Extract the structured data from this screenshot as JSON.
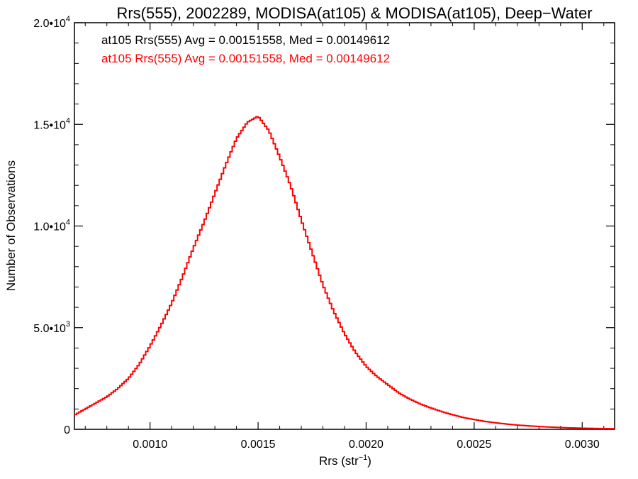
{
  "chart_data": {
    "type": "line",
    "title": "Rrs(555), 2002289, MODISA(at105) & MODISA(at105), Deep−Water",
    "xlabel": "Rrs (str",
    "xlabel_sup": "−1",
    "xlabel_close": ")",
    "ylabel": "Number of Observations",
    "xlim": [
      0.00065,
      0.00315
    ],
    "ylim": [
      0,
      20000
    ],
    "x_ticks": [
      {
        "value": 0.001,
        "label": "0.0010"
      },
      {
        "value": 0.0015,
        "label": "0.0015"
      },
      {
        "value": 0.002,
        "label": "0.0020"
      },
      {
        "value": 0.0025,
        "label": "0.0025"
      },
      {
        "value": 0.003,
        "label": "0.0030"
      }
    ],
    "y_ticks": [
      {
        "value": 0,
        "mant": "0",
        "exp": ""
      },
      {
        "value": 5000,
        "mant": "5.0•10",
        "exp": "3"
      },
      {
        "value": 10000,
        "mant": "1.0•10",
        "exp": "4"
      },
      {
        "value": 15000,
        "mant": "1.5•10",
        "exp": "4"
      },
      {
        "value": 20000,
        "mant": "2.0•10",
        "exp": "4"
      }
    ],
    "legend": [
      {
        "text": "at105 Rrs(555) Avg = 0.00151558, Med = 0.00149612",
        "color": "#000000"
      },
      {
        "text": "at105 Rrs(555) Avg = 0.00151558, Med = 0.00149612",
        "color": "#ff0000"
      }
    ],
    "legend_position": "top-left",
    "series": [
      {
        "color": "#ff0000",
        "step": "histogram",
        "x": [
          0.00065,
          0.0007,
          0.00075,
          0.0008,
          0.00085,
          0.0009,
          0.00095,
          0.001,
          0.00105,
          0.0011,
          0.00115,
          0.0012,
          0.00125,
          0.0013,
          0.00135,
          0.0014,
          0.00145,
          0.0015,
          0.00155,
          0.0016,
          0.00165,
          0.0017,
          0.00175,
          0.0018,
          0.00185,
          0.0019,
          0.00195,
          0.002,
          0.00205,
          0.0021,
          0.00215,
          0.0022,
          0.00225,
          0.0023,
          0.00235,
          0.0024,
          0.00245,
          0.0025,
          0.00255,
          0.0026,
          0.00265,
          0.0027,
          0.00275,
          0.0028,
          0.00285,
          0.0029,
          0.00295,
          0.003,
          0.00305,
          0.0031,
          0.00315
        ],
        "y": [
          700,
          1000,
          1300,
          1600,
          2000,
          2500,
          3200,
          4100,
          5100,
          6200,
          7500,
          8900,
          10200,
          11600,
          13000,
          14300,
          15100,
          15400,
          14700,
          13400,
          12000,
          10300,
          8700,
          7100,
          5800,
          4700,
          3800,
          3100,
          2600,
          2200,
          1800,
          1500,
          1250,
          1050,
          870,
          720,
          580,
          480,
          390,
          320,
          260,
          210,
          170,
          140,
          110,
          90,
          70,
          55,
          45,
          35,
          30
        ]
      }
    ]
  }
}
